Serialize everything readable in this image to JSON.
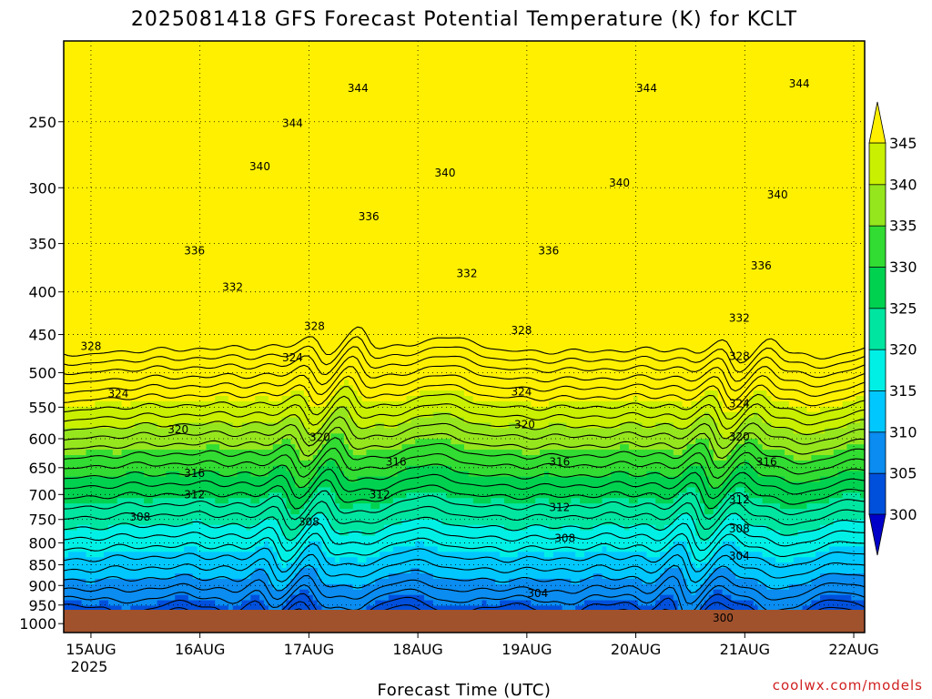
{
  "title": "2025081418 GFS Forecast Potential Temperature (K) for KCLT",
  "credit": "coolwx.com/models",
  "chart_data": {
    "type": "heatmap",
    "title": "2025081418 GFS Forecast Potential Temperature (K) for KCLT",
    "xlabel": "Forecast Time (UTC)",
    "ylabel": "",
    "x_ticks": [
      "15AUG",
      "16AUG",
      "17AUG",
      "18AUG",
      "19AUG",
      "20AUG",
      "21AUG",
      "22AUG"
    ],
    "x_year": "2025",
    "x_range_days": [
      14.75,
      22.1
    ],
    "y_ticks": [
      "250",
      "300",
      "350",
      "400",
      "450",
      "500",
      "550",
      "600",
      "650",
      "700",
      "750",
      "800",
      "850",
      "900",
      "950",
      "1000"
    ],
    "y_range_hpa": [
      200,
      1025
    ],
    "y_scale": "log",
    "y_reversed": true,
    "grid": true,
    "colorbar": {
      "labels": [
        "345",
        "340",
        "335",
        "330",
        "325",
        "320",
        "315",
        "310",
        "305",
        "300"
      ],
      "bounds": [
        300,
        305,
        310,
        315,
        320,
        325,
        330,
        335,
        340,
        345
      ],
      "colors": [
        "#0000c8",
        "#0050dc",
        "#0a8cf0",
        "#00c8ff",
        "#00f0e6",
        "#00e6a0",
        "#00d250",
        "#32dc32",
        "#96e61e",
        "#c8f000",
        "#fff000"
      ],
      "extend": "both"
    },
    "surface_color": "#a0522d",
    "contour_color": "#000000",
    "contour_interval": 2,
    "contour_labels": [
      {
        "text": "344",
        "day": 17.45,
        "hpa": 228
      },
      {
        "text": "344",
        "day": 20.1,
        "hpa": 228
      },
      {
        "text": "344",
        "day": 21.5,
        "hpa": 225
      },
      {
        "text": "344",
        "day": 16.85,
        "hpa": 251
      },
      {
        "text": "340",
        "day": 16.55,
        "hpa": 283
      },
      {
        "text": "340",
        "day": 18.25,
        "hpa": 288
      },
      {
        "text": "340",
        "day": 19.85,
        "hpa": 296
      },
      {
        "text": "340",
        "day": 21.3,
        "hpa": 306
      },
      {
        "text": "336",
        "day": 17.55,
        "hpa": 325
      },
      {
        "text": "336",
        "day": 15.95,
        "hpa": 357
      },
      {
        "text": "336",
        "day": 19.2,
        "hpa": 357
      },
      {
        "text": "336",
        "day": 21.15,
        "hpa": 372
      },
      {
        "text": "332",
        "day": 16.3,
        "hpa": 395
      },
      {
        "text": "332",
        "day": 18.45,
        "hpa": 380
      },
      {
        "text": "332",
        "day": 20.95,
        "hpa": 430
      },
      {
        "text": "328",
        "day": 15.0,
        "hpa": 465
      },
      {
        "text": "328",
        "day": 17.05,
        "hpa": 440
      },
      {
        "text": "328",
        "day": 18.95,
        "hpa": 445
      },
      {
        "text": "328",
        "day": 20.95,
        "hpa": 478
      },
      {
        "text": "324",
        "day": 16.85,
        "hpa": 480
      },
      {
        "text": "324",
        "day": 15.25,
        "hpa": 530
      },
      {
        "text": "324",
        "day": 18.95,
        "hpa": 527
      },
      {
        "text": "324",
        "day": 20.95,
        "hpa": 545
      },
      {
        "text": "320",
        "day": 15.8,
        "hpa": 585
      },
      {
        "text": "320",
        "day": 17.1,
        "hpa": 598
      },
      {
        "text": "320",
        "day": 18.98,
        "hpa": 577
      },
      {
        "text": "320",
        "day": 20.95,
        "hpa": 597
      },
      {
        "text": "316",
        "day": 15.95,
        "hpa": 660
      },
      {
        "text": "316",
        "day": 17.8,
        "hpa": 640
      },
      {
        "text": "316",
        "day": 19.3,
        "hpa": 640
      },
      {
        "text": "316",
        "day": 21.2,
        "hpa": 640
      },
      {
        "text": "312",
        "day": 15.95,
        "hpa": 700
      },
      {
        "text": "312",
        "day": 17.65,
        "hpa": 700
      },
      {
        "text": "312",
        "day": 19.3,
        "hpa": 725
      },
      {
        "text": "312",
        "day": 20.95,
        "hpa": 710
      },
      {
        "text": "308",
        "day": 15.45,
        "hpa": 745
      },
      {
        "text": "308",
        "day": 17.0,
        "hpa": 755
      },
      {
        "text": "308",
        "day": 19.35,
        "hpa": 790
      },
      {
        "text": "308",
        "day": 20.95,
        "hpa": 770
      },
      {
        "text": "304",
        "day": 19.1,
        "hpa": 920
      },
      {
        "text": "304",
        "day": 20.95,
        "hpa": 830
      },
      {
        "text": "300",
        "day": 20.8,
        "hpa": 985
      }
    ]
  }
}
